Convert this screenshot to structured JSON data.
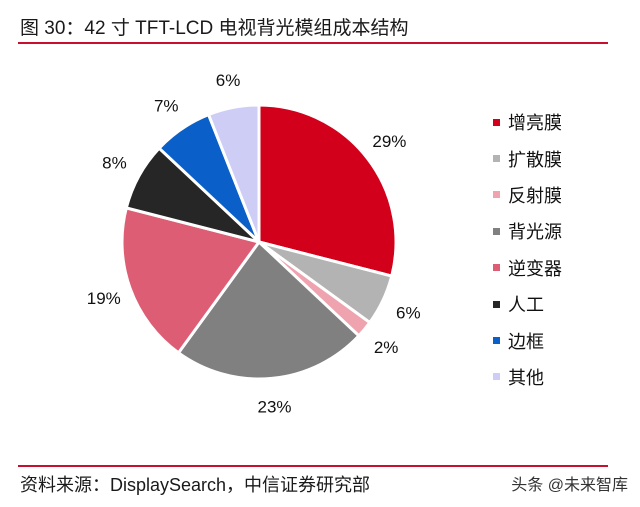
{
  "header": {
    "title": "图 30：42 寸 TFT-LCD 电视背光模组成本结构"
  },
  "footer": {
    "source": "资料来源：DisplaySearch，中信证券研究部",
    "watermark": "头条 @未来智库"
  },
  "colors": {
    "accent_rule": "#c8102e"
  },
  "chart_data": {
    "type": "pie",
    "title": "42 寸 TFT-LCD 电视背光模组成本结构",
    "start_angle_deg": 0,
    "direction": "clockwise",
    "legend_position": "right",
    "categories": [
      "增亮膜",
      "扩散膜",
      "反射膜",
      "背光源",
      "逆变器",
      "人工",
      "边框",
      "其他"
    ],
    "values": [
      29,
      6,
      2,
      23,
      19,
      8,
      7,
      6
    ],
    "labels": [
      "29%",
      "6%",
      "2%",
      "23%",
      "19%",
      "8%",
      "7%",
      "6%"
    ],
    "colors": [
      "#d2001a",
      "#b3b3b3",
      "#eea3ae",
      "#808080",
      "#dd5e74",
      "#262626",
      "#0a60c8",
      "#cdcdf5"
    ]
  },
  "legend": {
    "items": [
      {
        "label": "增亮膜",
        "color": "#d2001a"
      },
      {
        "label": "扩散膜",
        "color": "#b3b3b3"
      },
      {
        "label": "反射膜",
        "color": "#eea3ae"
      },
      {
        "label": "背光源",
        "color": "#808080"
      },
      {
        "label": "逆变器",
        "color": "#dd5e74"
      },
      {
        "label": "人工",
        "color": "#262626"
      },
      {
        "label": "边框",
        "color": "#0a60c8"
      },
      {
        "label": "其他",
        "color": "#cdcdf5"
      }
    ]
  }
}
